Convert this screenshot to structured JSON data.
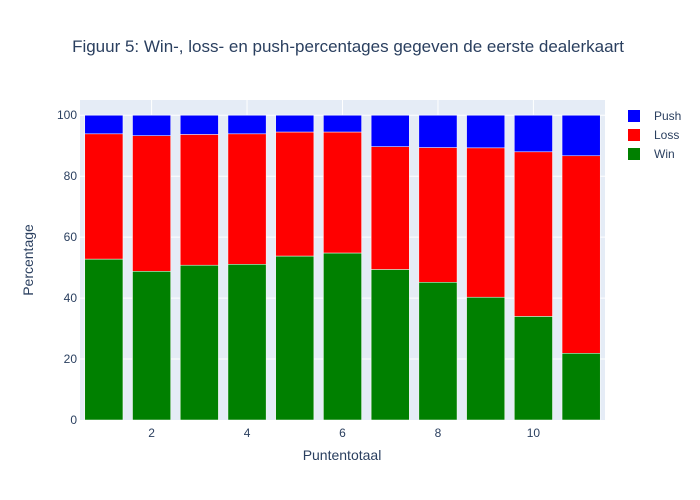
{
  "chart_data": {
    "type": "bar",
    "barmode": "stack",
    "title": "Figuur 5: Win-, loss- en push-percentages gegeven de eerste dealerkaart",
    "xlabel": "Puntentotaal",
    "ylabel": "Percentage",
    "x": [
      1,
      2,
      3,
      4,
      5,
      6,
      7,
      8,
      9,
      10,
      11
    ],
    "xlim": [
      0.5,
      11.5
    ],
    "ylim": [
      0,
      105
    ],
    "x_ticks": [
      2,
      4,
      6,
      8,
      10
    ],
    "y_ticks": [
      0,
      20,
      40,
      60,
      80,
      100
    ],
    "grid": true,
    "legend_position": "top-right",
    "series": [
      {
        "name": "Win",
        "color": "#008000",
        "values": [
          52.8,
          48.8,
          50.8,
          51.1,
          53.8,
          54.8,
          49.4,
          45.2,
          40.3,
          34.0,
          21.9
        ]
      },
      {
        "name": "Loss",
        "color": "#ff0000",
        "values": [
          41.1,
          44.5,
          42.9,
          42.8,
          40.7,
          39.7,
          40.3,
          44.2,
          49.0,
          54.0,
          64.8
        ]
      },
      {
        "name": "Push",
        "color": "#0000ff",
        "values": [
          6.1,
          6.7,
          6.3,
          6.1,
          5.5,
          5.5,
          10.3,
          10.6,
          10.7,
          12.0,
          13.3
        ]
      }
    ]
  }
}
